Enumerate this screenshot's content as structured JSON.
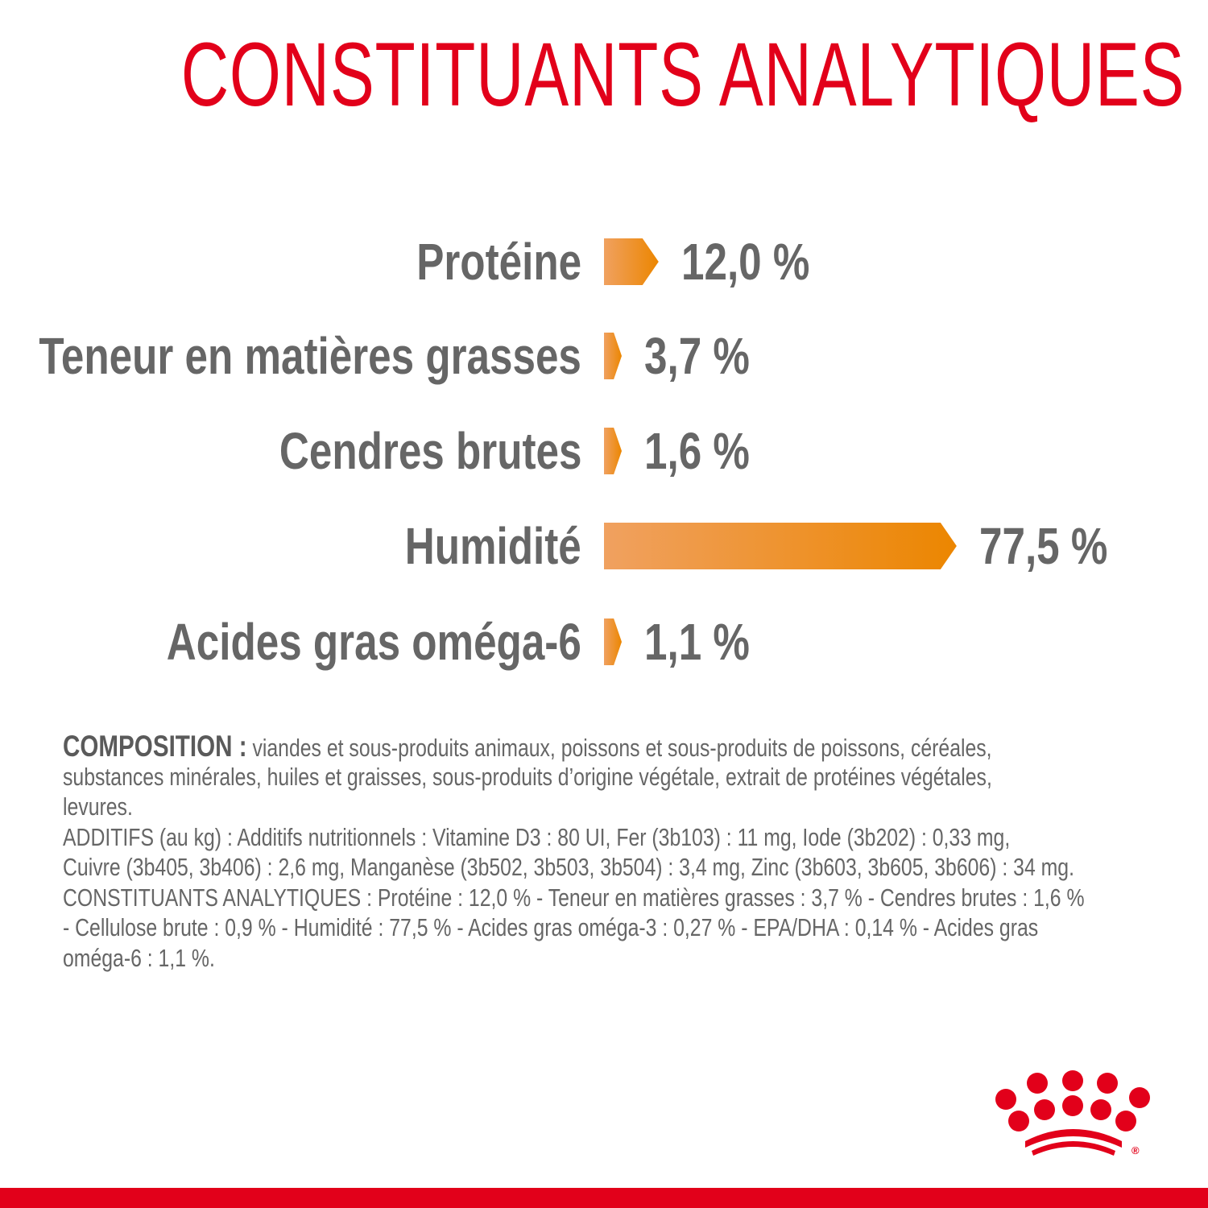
{
  "header": {
    "title": "CONSTITUANTS ANALYTIQUES"
  },
  "colors": {
    "brand_red": "#e2001a",
    "bar_start": "#f0a160",
    "bar_end": "#ec8600",
    "text_gray": "#666666"
  },
  "chart_data": {
    "type": "bar",
    "orientation": "horizontal",
    "title": "CONSTITUANTS ANALYTIQUES",
    "categories": [
      "Protéine",
      "Teneur en matières grasses",
      "Cendres brutes",
      "Humidité",
      "Acides gras oméga-6"
    ],
    "values": [
      12.0,
      3.7,
      1.6,
      77.5,
      1.1
    ],
    "value_labels": [
      "12,0 %",
      "3,7 %",
      "1,6 %",
      "77,5 %",
      "1,1 %"
    ],
    "unit": "%",
    "grid": false,
    "bar_shape": "arrow"
  },
  "composition": {
    "label": "COMPOSITION :",
    "lines": [
      " viandes et sous-produits animaux, poissons et sous-produits de poissons, céréales,",
      "substances minérales, huiles et graisses, sous-produits d’origine végétale, extrait de protéines végétales,",
      "levures.",
      "ADDITIFS (au kg) : Additifs nutritionnels : Vitamine D3 : 80 UI, Fer (3b103) : 11 mg, Iode (3b202) : 0,33 mg,",
      "Cuivre (3b405, 3b406) : 2,6 mg, Manganèse (3b502, 3b503, 3b504) : 3,4 mg, Zinc (3b603, 3b605, 3b606) : 34 mg.",
      "CONSTITUANTS ANALYTIQUES : Protéine : 12,0 % - Teneur en matières grasses : 3,7 % - Cendres brutes : 1,6 %",
      "- Cellulose brute : 0,9 % - Humidité : 77,5 % - Acides gras oméga-3 : 0,27 % - EPA/DHA : 0,14 % - Acides gras",
      "oméga-6 : 1,1 %."
    ]
  },
  "logo": {
    "name": "royal-canin-crown-logo",
    "mark": "®"
  }
}
